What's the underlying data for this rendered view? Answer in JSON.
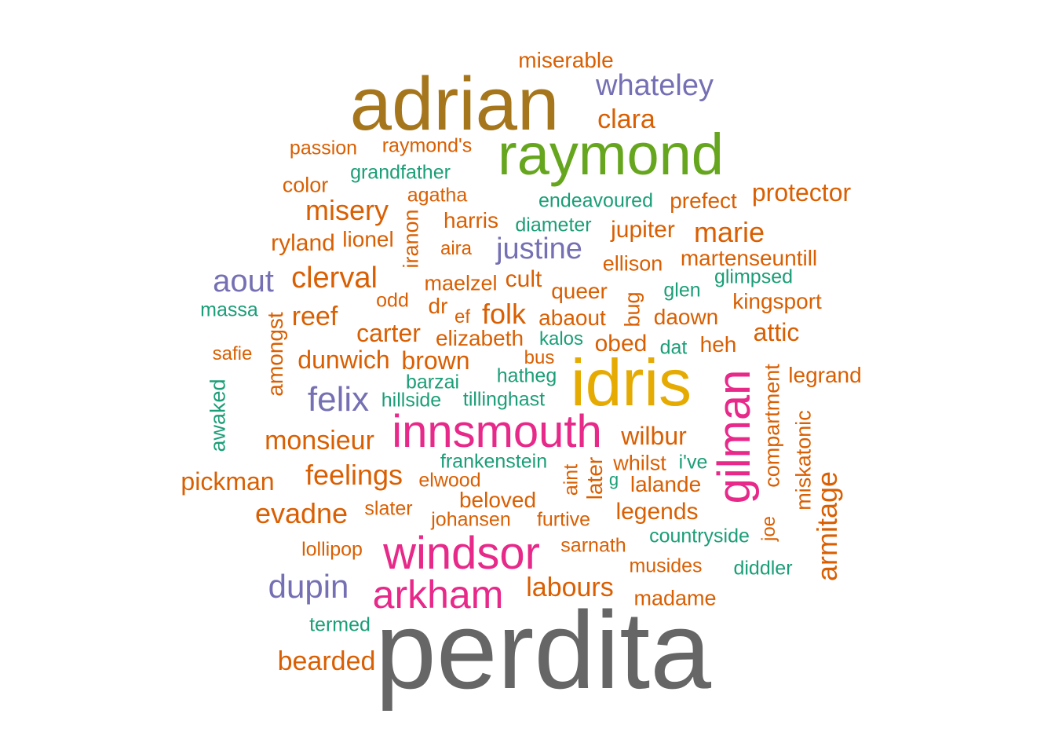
{
  "palette": {
    "orange": "#D95F02",
    "teal": "#1B9E77",
    "purple": "#7570B3",
    "magenta": "#E7298A",
    "green": "#66A61E",
    "gold": "#E6AB02",
    "brown": "#A6761D",
    "gray": "#666666"
  },
  "words": [
    {
      "text": "perdita",
      "color": "gray"
    },
    {
      "text": "adrian",
      "color": "brown"
    },
    {
      "text": "raymond",
      "color": "green"
    },
    {
      "text": "idris",
      "color": "gold"
    },
    {
      "text": "innsmouth",
      "color": "magenta"
    },
    {
      "text": "windsor",
      "color": "magenta"
    },
    {
      "text": "gilman",
      "color": "magenta"
    },
    {
      "text": "arkham",
      "color": "magenta"
    },
    {
      "text": "whateley",
      "color": "purple"
    },
    {
      "text": "justine",
      "color": "purple"
    },
    {
      "text": "aout",
      "color": "purple"
    },
    {
      "text": "felix",
      "color": "purple"
    },
    {
      "text": "dupin",
      "color": "purple"
    },
    {
      "text": "miserable",
      "color": "orange"
    },
    {
      "text": "clara",
      "color": "orange"
    },
    {
      "text": "passion",
      "color": "orange"
    },
    {
      "text": "raymond's",
      "color": "orange"
    },
    {
      "text": "grandfather",
      "color": "teal"
    },
    {
      "text": "color",
      "color": "orange"
    },
    {
      "text": "agatha",
      "color": "orange"
    },
    {
      "text": "endeavoured",
      "color": "teal"
    },
    {
      "text": "prefect",
      "color": "orange"
    },
    {
      "text": "protector",
      "color": "orange"
    },
    {
      "text": "misery",
      "color": "orange"
    },
    {
      "text": "harris",
      "color": "orange"
    },
    {
      "text": "diameter",
      "color": "teal"
    },
    {
      "text": "jupiter",
      "color": "orange"
    },
    {
      "text": "marie",
      "color": "orange"
    },
    {
      "text": "ryland",
      "color": "orange"
    },
    {
      "text": "lionel",
      "color": "orange"
    },
    {
      "text": "iranon",
      "color": "orange"
    },
    {
      "text": "aira",
      "color": "orange"
    },
    {
      "text": "ellison",
      "color": "orange"
    },
    {
      "text": "martenseuntill",
      "color": "orange"
    },
    {
      "text": "clerval",
      "color": "orange"
    },
    {
      "text": "maelzel",
      "color": "orange"
    },
    {
      "text": "cult",
      "color": "orange"
    },
    {
      "text": "glimpsed",
      "color": "teal"
    },
    {
      "text": "massa",
      "color": "teal"
    },
    {
      "text": "odd",
      "color": "orange"
    },
    {
      "text": "dr",
      "color": "orange"
    },
    {
      "text": "queer",
      "color": "orange"
    },
    {
      "text": "glen",
      "color": "teal"
    },
    {
      "text": "kingsport",
      "color": "orange"
    },
    {
      "text": "amongst",
      "color": "orange"
    },
    {
      "text": "reef",
      "color": "orange"
    },
    {
      "text": "ef",
      "color": "orange"
    },
    {
      "text": "folk",
      "color": "orange"
    },
    {
      "text": "abaout",
      "color": "orange"
    },
    {
      "text": "bug",
      "color": "orange"
    },
    {
      "text": "daown",
      "color": "orange"
    },
    {
      "text": "attic",
      "color": "orange"
    },
    {
      "text": "carter",
      "color": "orange"
    },
    {
      "text": "elizabeth",
      "color": "orange"
    },
    {
      "text": "kalos",
      "color": "teal"
    },
    {
      "text": "obed",
      "color": "orange"
    },
    {
      "text": "dat",
      "color": "teal"
    },
    {
      "text": "heh",
      "color": "orange"
    },
    {
      "text": "safie",
      "color": "orange"
    },
    {
      "text": "dunwich",
      "color": "orange"
    },
    {
      "text": "brown",
      "color": "orange"
    },
    {
      "text": "bus",
      "color": "orange"
    },
    {
      "text": "compartment",
      "color": "orange"
    },
    {
      "text": "legrand",
      "color": "orange"
    },
    {
      "text": "awaked",
      "color": "teal"
    },
    {
      "text": "barzai",
      "color": "teal"
    },
    {
      "text": "hatheg",
      "color": "teal"
    },
    {
      "text": "hillside",
      "color": "teal"
    },
    {
      "text": "tillinghast",
      "color": "teal"
    },
    {
      "text": "miskatonic",
      "color": "orange"
    },
    {
      "text": "monsieur",
      "color": "orange"
    },
    {
      "text": "wilbur",
      "color": "orange"
    },
    {
      "text": "armitage",
      "color": "orange"
    },
    {
      "text": "frankenstein",
      "color": "teal"
    },
    {
      "text": "aint",
      "color": "orange"
    },
    {
      "text": "later",
      "color": "orange"
    },
    {
      "text": "whilst",
      "color": "orange"
    },
    {
      "text": "i've",
      "color": "teal"
    },
    {
      "text": "pickman",
      "color": "orange"
    },
    {
      "text": "feelings",
      "color": "orange"
    },
    {
      "text": "elwood",
      "color": "orange"
    },
    {
      "text": "g",
      "color": "teal"
    },
    {
      "text": "lalande",
      "color": "orange"
    },
    {
      "text": "beloved",
      "color": "orange"
    },
    {
      "text": "joe",
      "color": "orange"
    },
    {
      "text": "evadne",
      "color": "orange"
    },
    {
      "text": "slater",
      "color": "orange"
    },
    {
      "text": "johansen",
      "color": "orange"
    },
    {
      "text": "furtive",
      "color": "orange"
    },
    {
      "text": "legends",
      "color": "orange"
    },
    {
      "text": "countryside",
      "color": "teal"
    },
    {
      "text": "lollipop",
      "color": "orange"
    },
    {
      "text": "sarnath",
      "color": "orange"
    },
    {
      "text": "musides",
      "color": "orange"
    },
    {
      "text": "diddler",
      "color": "teal"
    },
    {
      "text": "labours",
      "color": "orange"
    },
    {
      "text": "madame",
      "color": "orange"
    },
    {
      "text": "termed",
      "color": "teal"
    },
    {
      "text": "bearded",
      "color": "orange"
    }
  ]
}
